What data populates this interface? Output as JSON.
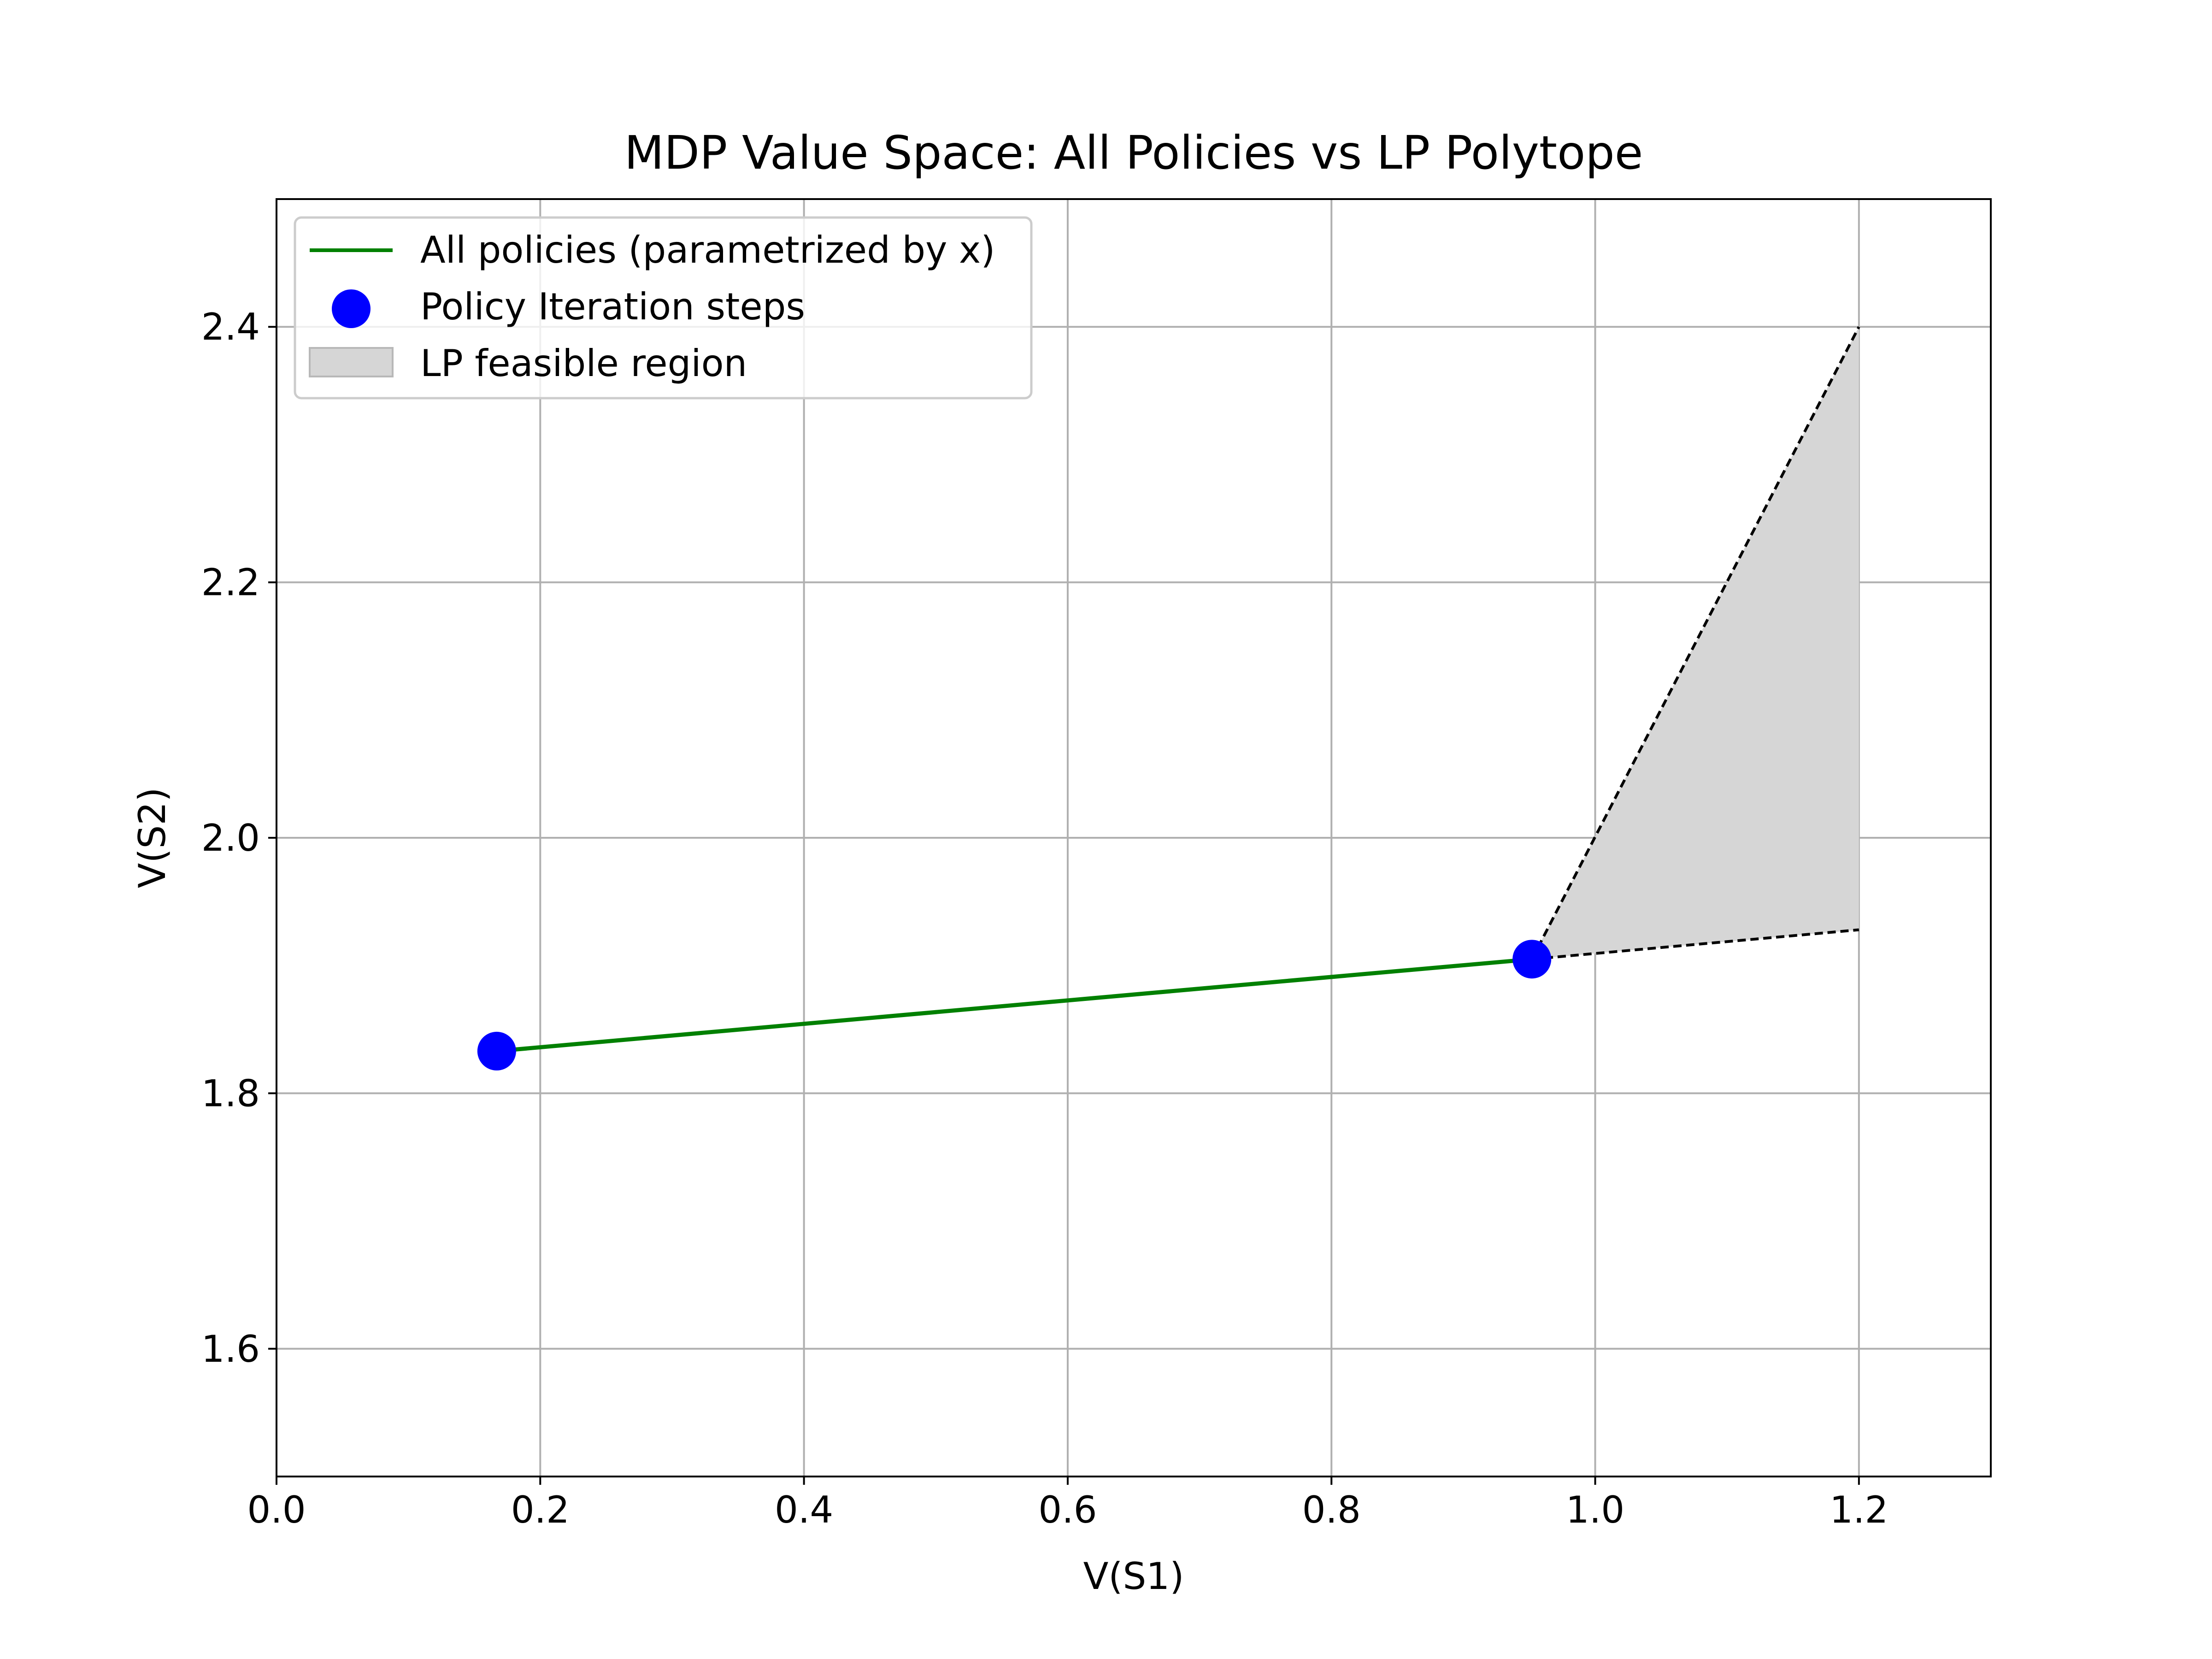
{
  "chart_data": {
    "type": "line",
    "title": "MDP Value Space: All Policies vs LP Polytope",
    "xlabel": "V(S1)",
    "ylabel": "V(S2)",
    "xlim": [
      0.0,
      1.3
    ],
    "ylim": [
      1.5,
      2.5
    ],
    "xticks": [
      "0.0",
      "0.2",
      "0.4",
      "0.6",
      "0.8",
      "1.0",
      "1.2"
    ],
    "xtick_values": [
      0.0,
      0.2,
      0.4,
      0.6,
      0.8,
      1.0,
      1.2
    ],
    "yticks": [
      "1.6",
      "1.8",
      "2.0",
      "2.2",
      "2.4"
    ],
    "ytick_values": [
      1.6,
      1.8,
      2.0,
      2.2,
      2.4
    ],
    "grid": true,
    "legend_position": "upper-left",
    "colors": {
      "policies_line": "#008000",
      "pi_points": "#0000ff",
      "feasible_fill": "#d6d6d6",
      "boundary": "#000000",
      "grid": "#b0b0b0"
    },
    "series": [
      {
        "name": "All policies (parametrized by x)",
        "kind": "line",
        "points": [
          [
            0.167,
            1.833
          ],
          [
            0.952,
            1.905
          ]
        ]
      },
      {
        "name": "Policy Iteration steps",
        "kind": "scatter",
        "points": [
          [
            0.167,
            1.833
          ],
          [
            0.952,
            1.905
          ]
        ]
      },
      {
        "name": "LP feasible region",
        "kind": "area",
        "polygon": [
          [
            0.952,
            1.905
          ],
          [
            1.2,
            2.4
          ],
          [
            1.2,
            1.928
          ]
        ]
      }
    ],
    "boundary_lines": [
      [
        [
          0.952,
          1.905
        ],
        [
          1.2,
          2.4
        ]
      ],
      [
        [
          0.952,
          1.905
        ],
        [
          1.2,
          1.928
        ]
      ]
    ]
  }
}
